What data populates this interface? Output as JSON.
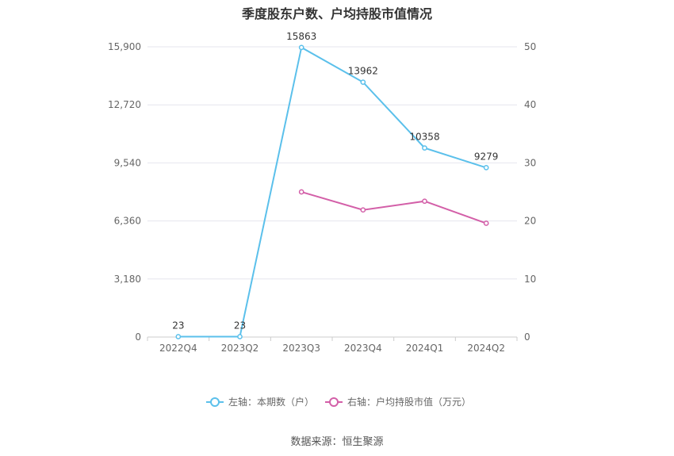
{
  "chart_data": {
    "type": "line",
    "title": "季度股东户数、户均持股市值情况",
    "categories": [
      "2022Q4",
      "2023Q2",
      "2023Q3",
      "2023Q4",
      "2024Q1",
      "2024Q2"
    ],
    "series": [
      {
        "name": "左轴：本期数（户）",
        "axis": "left",
        "color": "#5bc0eb",
        "values": [
          23,
          23,
          15863,
          13962,
          10358,
          9279
        ],
        "data_labels": [
          "23",
          "23",
          "15863",
          "13962",
          "10358",
          "9279"
        ]
      },
      {
        "name": "右轴：户均持股市值（万元）",
        "axis": "right",
        "color": "#d35fa8",
        "values": [
          null,
          null,
          25.0,
          21.9,
          23.4,
          19.6
        ]
      }
    ],
    "left_axis": {
      "ylim": [
        0,
        15900
      ],
      "ticks": [
        "0",
        "3,180",
        "6,360",
        "9,540",
        "12,720",
        "15,900"
      ]
    },
    "right_axis": {
      "ylim": [
        0,
        50
      ],
      "ticks": [
        "0",
        "10",
        "20",
        "30",
        "40",
        "50"
      ]
    },
    "grid": true,
    "legend_position": "bottom-center"
  },
  "source": "数据来源：恒生聚源"
}
